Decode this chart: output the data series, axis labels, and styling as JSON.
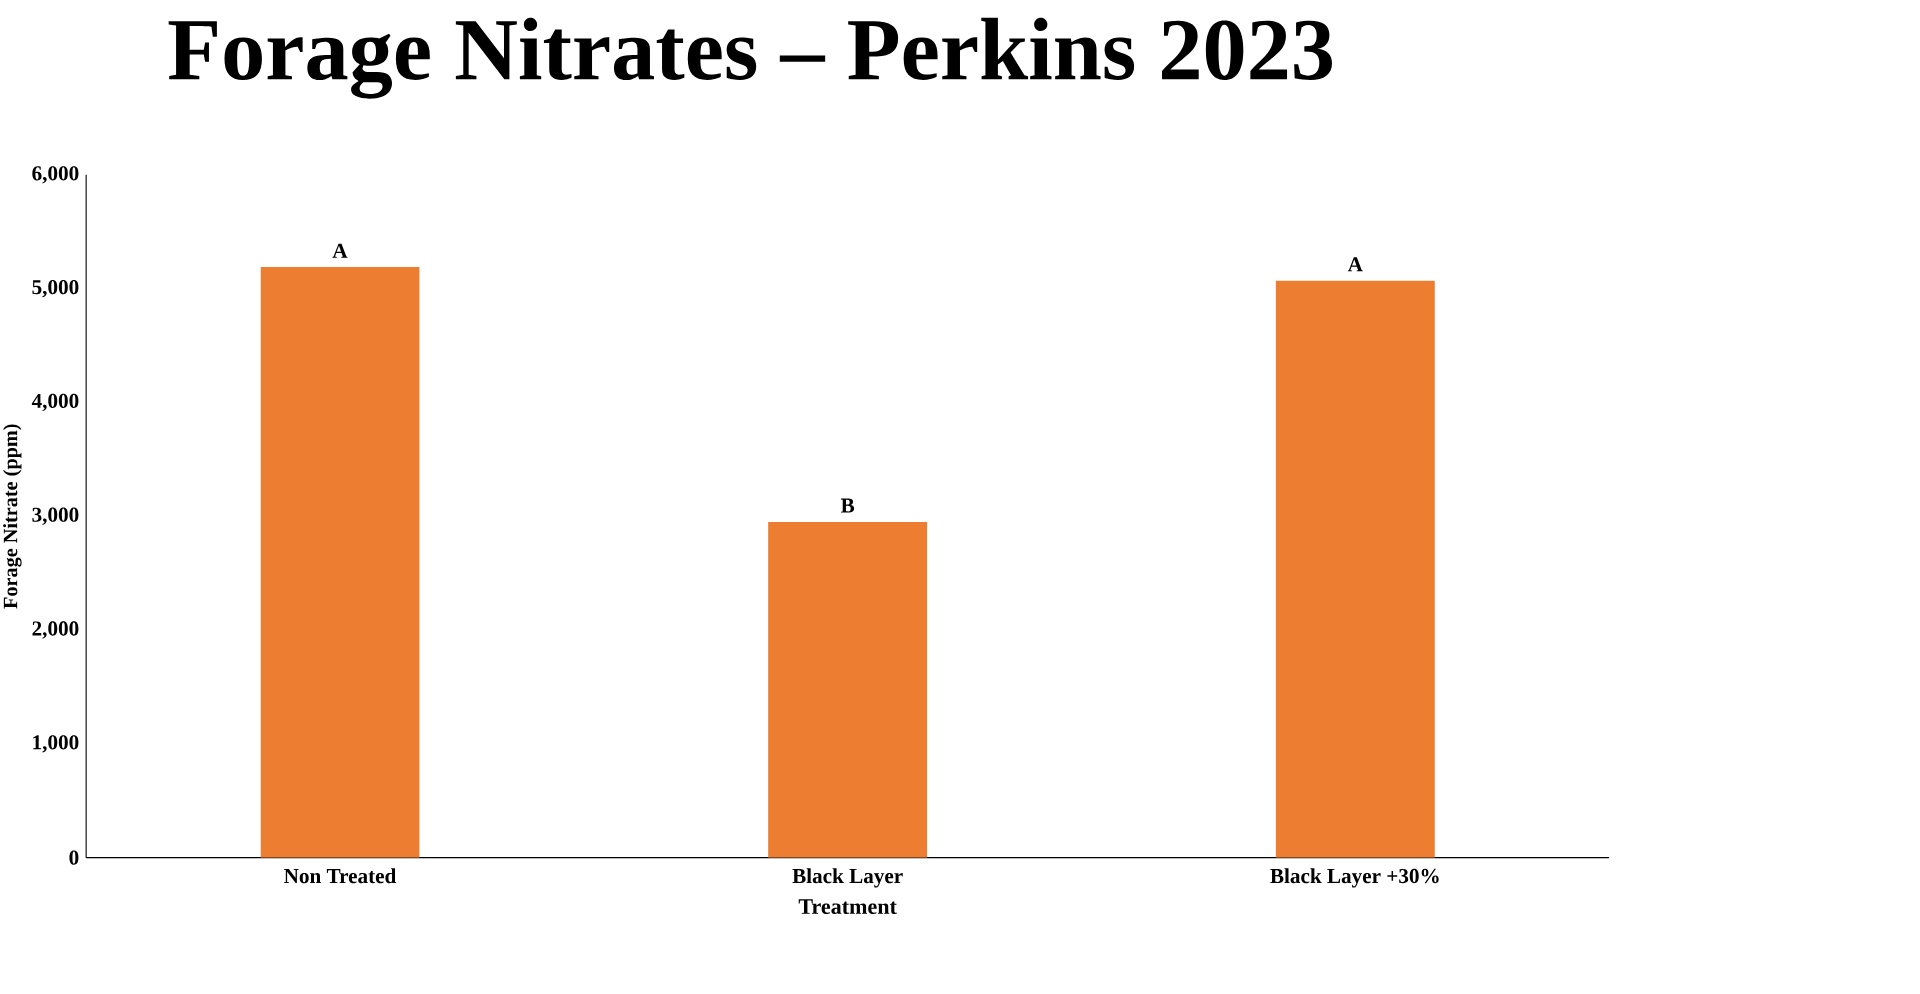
{
  "chart_data": {
    "type": "bar",
    "title": "Forage Nitrates – Perkins 2023",
    "xlabel": "Treatment",
    "ylabel": "Forage Nitrate (ppm)",
    "categories": [
      "Non Treated",
      "Black Layer",
      "Black Layer +30%"
    ],
    "values": [
      5190,
      2950,
      5070
    ],
    "value_labels": [
      "A",
      "B",
      "A"
    ],
    "color": "#ed7d31",
    "ylim": [
      0,
      6000
    ],
    "yticks": [
      {
        "value": 0,
        "label": "0"
      },
      {
        "value": 1000,
        "label": "1,000"
      },
      {
        "value": 2000,
        "label": "2,000"
      },
      {
        "value": 3000,
        "label": "3,000"
      },
      {
        "value": 4000,
        "label": "4,000"
      },
      {
        "value": 5000,
        "label": "5,000"
      },
      {
        "value": 6000,
        "label": "6,000"
      }
    ]
  }
}
